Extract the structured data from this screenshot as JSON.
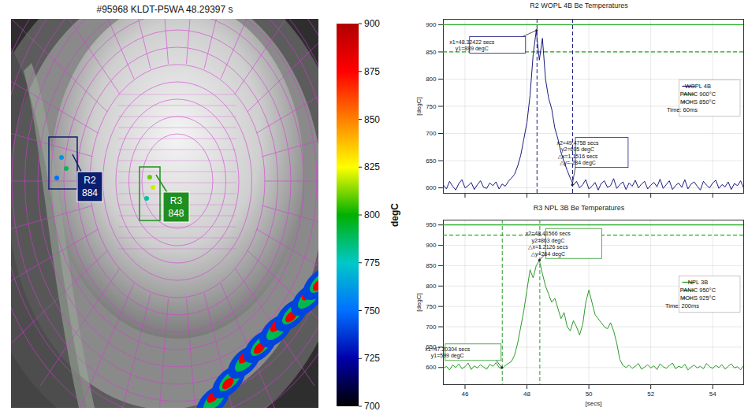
{
  "chart_data": [
    {
      "type": "image",
      "title": "#95968 KLDT-P5WA 48.29397 s",
      "colorbar": {
        "label": "degC",
        "range": [
          700,
          900
        ],
        "ticks": [
          700,
          725,
          750,
          775,
          800,
          825,
          850,
          875,
          900
        ]
      },
      "regions": [
        {
          "label": "R2",
          "value": 884,
          "color": "#0b1f6e"
        },
        {
          "label": "R3",
          "value": 848,
          "color": "#1f8f1f"
        }
      ]
    },
    {
      "type": "line",
      "title": "R2 WOPL 4B Be Temperatures",
      "y_label": "[degC]",
      "x": [
        45.3,
        45.4,
        45.5,
        45.6,
        45.7,
        45.8,
        45.9,
        46.0,
        46.1,
        46.2,
        46.3,
        46.4,
        46.5,
        46.6,
        46.7,
        46.8,
        46.9,
        47.0,
        47.1,
        47.2,
        47.3,
        47.4,
        47.5,
        47.6,
        47.7,
        47.8,
        47.9,
        48.0,
        48.1,
        48.2,
        48.3,
        48.4,
        48.5,
        48.6,
        48.7,
        48.8,
        48.9,
        49.0,
        49.1,
        49.2,
        49.3,
        49.4,
        49.5,
        49.6,
        49.7,
        49.8,
        49.9,
        50.0,
        50.1,
        50.2,
        50.3,
        50.4,
        50.5,
        50.6,
        50.7,
        50.8,
        50.9,
        51.0,
        51.1,
        51.2,
        51.3,
        51.4,
        51.5,
        51.6,
        51.7,
        51.8,
        51.9,
        52.0,
        52.1,
        52.2,
        52.3,
        52.4,
        52.5,
        52.6,
        52.7,
        52.8,
        52.9,
        53.0,
        53.1,
        53.2,
        53.3,
        53.4,
        53.5,
        53.6,
        53.7,
        53.8,
        53.9,
        54.0,
        54.1,
        54.2,
        54.3,
        54.4,
        54.5,
        54.6,
        54.7,
        54.8,
        54.9,
        55.0
      ],
      "series": [
        {
          "name": "WOPL 4B",
          "color": "#1a1a80",
          "values": [
            605,
            598,
            612,
            603,
            596,
            608,
            615,
            600,
            604,
            610,
            597,
            606,
            613,
            601,
            599,
            609,
            604,
            611,
            598,
            607,
            603,
            612,
            618,
            625,
            640,
            660,
            690,
            720,
            770,
            845,
            889,
            835,
            875,
            800,
            765,
            745,
            710,
            690,
            665,
            648,
            632,
            618,
            605,
            612,
            600,
            606,
            615,
            598,
            603,
            610,
            596,
            608,
            613,
            601,
            604,
            617,
            599,
            606,
            611,
            597,
            609,
            603,
            614,
            600,
            607,
            612,
            598,
            605,
            610,
            602,
            616,
            599,
            606,
            613,
            597,
            604,
            609,
            601,
            615,
            598,
            607,
            611,
            603,
            596,
            612,
            605,
            600,
            609,
            614,
            599,
            606,
            602,
            611,
            597,
            608,
            604,
            613,
            600
          ]
        }
      ],
      "thresholds": [
        {
          "name": "PANIC 900°C",
          "value": 900,
          "color": "#22aa22",
          "line_style": "solid"
        },
        {
          "name": "MCHS 850°C",
          "value": 850,
          "color": "#22aa22",
          "line_style": "dashed"
        }
      ],
      "legend_note": "Time: 60ms",
      "annotations": [
        {
          "x": 48.32422,
          "y": 889,
          "lines": [
            "x1=48.32422 secs",
            "y1=889 degC"
          ]
        },
        {
          "x": 49.4758,
          "y": 605,
          "lines": [
            "x2=49.4758 secs",
            "y2=605 degC",
            "△x=1.1516 secs",
            "△y=-284 degC"
          ]
        }
      ],
      "xlim": [
        45.3,
        55.0
      ],
      "xticks": [
        46,
        48,
        50,
        52,
        54
      ],
      "ylim": [
        590,
        910
      ],
      "yticks": [
        600,
        650,
        700,
        750,
        800,
        850,
        900
      ],
      "grid": true,
      "legend": "right",
      "tick_labels": "y"
    },
    {
      "type": "line",
      "title": "R3 NPL 3B Be Temperatures",
      "x_label": "[secs]",
      "y_label": "[degC]",
      "x": [
        45.3,
        45.4,
        45.5,
        45.6,
        45.7,
        45.8,
        45.9,
        46.0,
        46.1,
        46.2,
        46.3,
        46.4,
        46.5,
        46.6,
        46.7,
        46.8,
        46.9,
        47.0,
        47.1,
        47.2,
        47.3,
        47.4,
        47.5,
        47.6,
        47.7,
        47.8,
        47.9,
        48.0,
        48.1,
        48.2,
        48.3,
        48.4,
        48.5,
        48.6,
        48.7,
        48.8,
        48.9,
        49.0,
        49.1,
        49.2,
        49.3,
        49.4,
        49.5,
        49.6,
        49.7,
        49.8,
        49.9,
        50.0,
        50.1,
        50.2,
        50.3,
        50.4,
        50.5,
        50.6,
        50.7,
        50.8,
        50.9,
        51.0,
        51.1,
        51.2,
        51.3,
        51.4,
        51.5,
        51.6,
        51.7,
        51.8,
        51.9,
        52.0,
        52.1,
        52.2,
        52.3,
        52.4,
        52.5,
        52.6,
        52.7,
        52.8,
        52.9,
        53.0,
        53.1,
        53.2,
        53.3,
        53.4,
        53.5,
        53.6,
        53.7,
        53.8,
        53.9,
        54.0,
        54.1,
        54.2,
        54.3,
        54.4,
        54.5,
        54.6,
        54.7,
        54.8,
        54.9,
        55.0
      ],
      "series": [
        {
          "name": "NPL 3B",
          "color": "#2a9a2a",
          "values": [
            598,
            603,
            594,
            606,
            600,
            609,
            597,
            602,
            611,
            595,
            604,
            599,
            607,
            601,
            596,
            608,
            603,
            612,
            600,
            597,
            605,
            610,
            615,
            630,
            660,
            700,
            740,
            790,
            840,
            820,
            850,
            863,
            830,
            800,
            780,
            760,
            770,
            745,
            720,
            735,
            700,
            690,
            715,
            700,
            680,
            705,
            760,
            790,
            760,
            730,
            720,
            710,
            700,
            695,
            710,
            690,
            660,
            620,
            605,
            600,
            606,
            598,
            603,
            610,
            596,
            601,
            607,
            599,
            604,
            595,
            609,
            602,
            598,
            605,
            611,
            597,
            603,
            600,
            608,
            594,
            601,
            606,
            599,
            603,
            597,
            610,
            602,
            598,
            605,
            600,
            607,
            596,
            603,
            609,
            599,
            602,
            594,
            605
          ]
        }
      ],
      "thresholds": [
        {
          "name": "PANIC 950°C",
          "value": 950,
          "color": "#22aa22",
          "line_style": "solid"
        },
        {
          "name": "MCHS 925°C",
          "value": 925,
          "color": "#22aa22",
          "line_style": "dashed"
        }
      ],
      "legend_note": "Time: 200ms",
      "annotations": [
        {
          "x": 47.20304,
          "y": 599,
          "lines": [
            "x1=47.20304 secs",
            "y1=599 degC"
          ]
        },
        {
          "x": 48.41566,
          "y": 863,
          "lines": [
            "x2=48.41566 secs",
            "y2=863 degC",
            "△x=1.2126 secs",
            "△y=264 degC"
          ]
        }
      ],
      "xlim": [
        45.3,
        55.0
      ],
      "xticks": [
        46,
        48,
        50,
        52,
        54
      ],
      "ylim": [
        558,
        962
      ],
      "yticks": [
        600,
        650,
        700,
        750,
        800,
        850,
        900,
        950
      ],
      "grid": true,
      "legend": "right",
      "tick_labels": true
    }
  ]
}
